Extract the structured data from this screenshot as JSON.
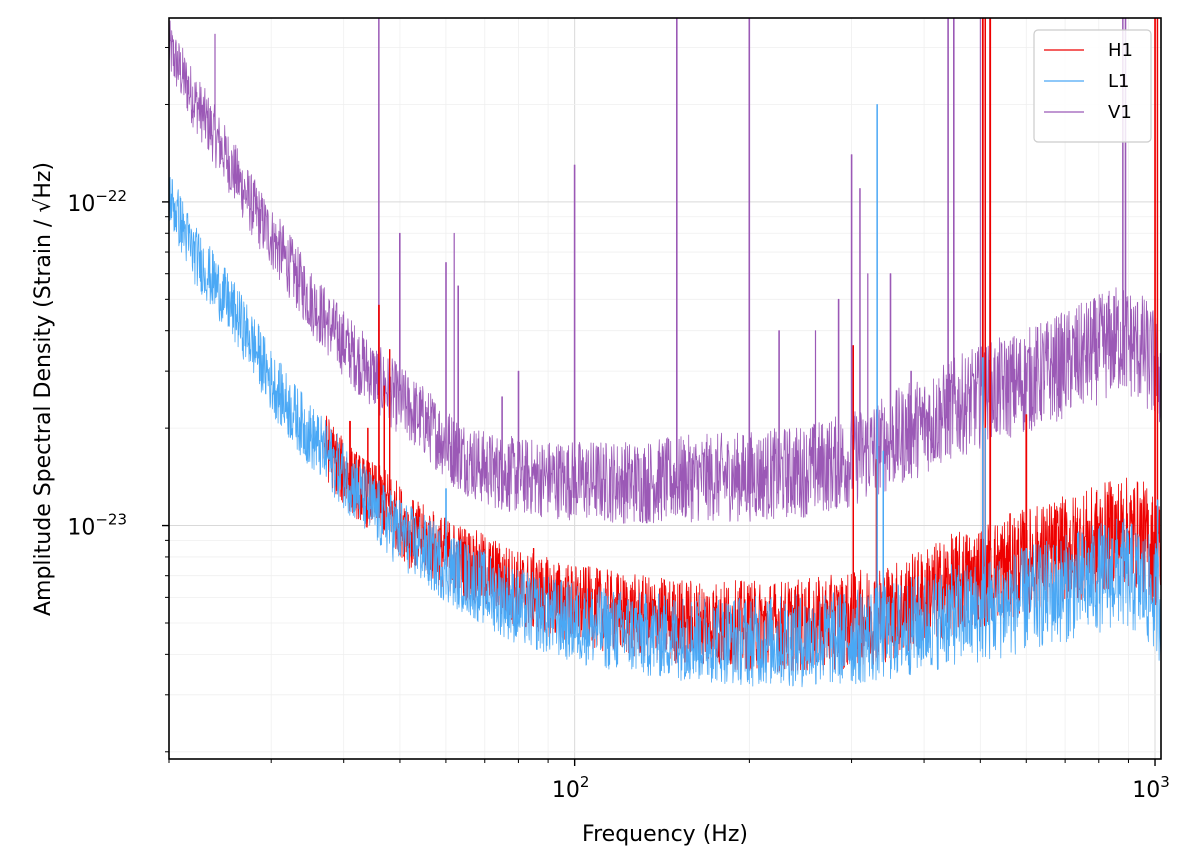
{
  "chart_data": {
    "type": "line",
    "xlabel": "Frequency (Hz)",
    "ylabel": "Amplitude Spectral Density (Strain / √Hz)",
    "x_scale": "log",
    "y_scale": "log",
    "xlim": [
      20,
      1024
    ],
    "ylim": [
      1.9e-24,
      3.7e-22
    ],
    "grid": true,
    "legend_position": "top-right",
    "x_ticks": [
      {
        "value": 100,
        "base": "10",
        "exp": "2"
      },
      {
        "value": 1000,
        "base": "10",
        "exp": "3"
      }
    ],
    "y_ticks": [
      {
        "value": 1e-23,
        "base": "10",
        "exp": "−23"
      },
      {
        "value": 1e-22,
        "base": "10",
        "exp": "−22"
      }
    ],
    "series": [
      {
        "name": "H1",
        "color": "#ee0000",
        "baseline": [
          [
            37,
            1.8e-23
          ],
          [
            40,
            1.45e-23
          ],
          [
            44,
            1.25e-23
          ],
          [
            48,
            1.15e-23
          ],
          [
            52,
            9.5e-24
          ],
          [
            60,
            8.2e-24
          ],
          [
            70,
            7.2e-24
          ],
          [
            80,
            6.4e-24
          ],
          [
            100,
            5.7e-24
          ],
          [
            130,
            5.2e-24
          ],
          [
            160,
            5e-24
          ],
          [
            200,
            4.9e-24
          ],
          [
            250,
            4.9e-24
          ],
          [
            300,
            5.1e-24
          ],
          [
            350,
            5.4e-24
          ],
          [
            400,
            6e-24
          ],
          [
            450,
            6.6e-24
          ],
          [
            500,
            7e-24
          ],
          [
            600,
            7.8e-24
          ],
          [
            700,
            8.4e-24
          ],
          [
            800,
            9e-24
          ],
          [
            870,
            9.6e-24
          ],
          [
            950,
            9.3e-24
          ],
          [
            1000,
            8.4e-24
          ],
          [
            1024,
            8e-24
          ]
        ],
        "lines": [
          [
            41,
            2.1e-23
          ],
          [
            44,
            2e-23
          ],
          [
            46,
            4.8e-23
          ],
          [
            47,
            2.7e-23
          ],
          [
            48,
            3.5e-23
          ],
          [
            53,
            1.05e-23
          ],
          [
            60,
            9.5e-24
          ],
          [
            85,
            8.5e-24
          ],
          [
            302,
            3.6e-23
          ],
          [
            331,
            1.6e-23
          ],
          [
            505,
            4e-22
          ],
          [
            510,
            4e-22
          ],
          [
            520,
            4e-22
          ],
          [
            600,
            2.2e-23
          ],
          [
            1000,
            4e-22
          ],
          [
            1010,
            4e-22
          ]
        ]
      },
      {
        "name": "L1",
        "color": "#4aa8f5",
        "baseline": [
          [
            20,
            1.05e-22
          ],
          [
            22,
            7e-23
          ],
          [
            24,
            5.6e-23
          ],
          [
            26,
            4.5e-23
          ],
          [
            28,
            3.6e-23
          ],
          [
            30,
            2.8e-23
          ],
          [
            32,
            2.35e-23
          ],
          [
            35,
            1.9e-23
          ],
          [
            38,
            1.6e-23
          ],
          [
            42,
            1.3e-23
          ],
          [
            46,
            1.08e-23
          ],
          [
            52,
            9e-24
          ],
          [
            60,
            7.5e-24
          ],
          [
            70,
            6.4e-24
          ],
          [
            80,
            5.6e-24
          ],
          [
            100,
            5e-24
          ],
          [
            130,
            4.6e-24
          ],
          [
            160,
            4.5e-24
          ],
          [
            200,
            4.4e-24
          ],
          [
            250,
            4.4e-24
          ],
          [
            300,
            4.5e-24
          ],
          [
            350,
            4.7e-24
          ],
          [
            400,
            5e-24
          ],
          [
            450,
            5.3e-24
          ],
          [
            500,
            5.4e-24
          ],
          [
            600,
            5.9e-24
          ],
          [
            700,
            6.4e-24
          ],
          [
            800,
            6.9e-24
          ],
          [
            870,
            7.2e-24
          ],
          [
            950,
            6.6e-24
          ],
          [
            1000,
            6e-24
          ],
          [
            1024,
            5.6e-24
          ]
        ],
        "lines": [
          [
            42,
            1.5e-23
          ],
          [
            60,
            1.3e-23
          ],
          [
            332,
            2e-22
          ],
          [
            340,
            1.7e-23
          ],
          [
            505,
            3.3e-23
          ],
          [
            510,
            2e-23
          ],
          [
            600,
            8.5e-24
          ],
          [
            1010,
            1.2e-23
          ]
        ]
      },
      {
        "name": "V1",
        "color": "#9b59b6",
        "baseline": [
          [
            20,
            3e-22
          ],
          [
            22,
            2.1e-22
          ],
          [
            24,
            1.6e-22
          ],
          [
            26,
            1.22e-22
          ],
          [
            28,
            9.5e-23
          ],
          [
            30,
            7.8e-23
          ],
          [
            32,
            6.5e-23
          ],
          [
            35,
            5e-23
          ],
          [
            38,
            4.1e-23
          ],
          [
            42,
            3.3e-23
          ],
          [
            48,
            2.6e-23
          ],
          [
            55,
            2.1e-23
          ],
          [
            62,
            1.7e-23
          ],
          [
            70,
            1.5e-23
          ],
          [
            80,
            1.42e-23
          ],
          [
            100,
            1.38e-23
          ],
          [
            130,
            1.36e-23
          ],
          [
            160,
            1.4e-23
          ],
          [
            200,
            1.42e-23
          ],
          [
            250,
            1.48e-23
          ],
          [
            300,
            1.6e-23
          ],
          [
            350,
            1.82e-23
          ],
          [
            400,
            2.05e-23
          ],
          [
            450,
            2.3e-23
          ],
          [
            500,
            2.5e-23
          ],
          [
            600,
            2.8e-23
          ],
          [
            700,
            3.15e-23
          ],
          [
            800,
            3.5e-23
          ],
          [
            870,
            3.8e-23
          ],
          [
            950,
            3.5e-23
          ],
          [
            1000,
            3.1e-23
          ],
          [
            1024,
            2.9e-23
          ]
        ],
        "lines": [
          [
            24,
            3.3e-22
          ],
          [
            46,
            3.7e-22
          ],
          [
            50,
            8e-23
          ],
          [
            60,
            6.5e-23
          ],
          [
            62,
            8e-23
          ],
          [
            63,
            5.5e-23
          ],
          [
            75,
            2.5e-23
          ],
          [
            80,
            3e-23
          ],
          [
            100,
            1.3e-22
          ],
          [
            150,
            3.7e-22
          ],
          [
            200,
            3.7e-22
          ],
          [
            225,
            4e-23
          ],
          [
            260,
            4e-23
          ],
          [
            285,
            5e-23
          ],
          [
            300,
            1.4e-22
          ],
          [
            310,
            1.1e-22
          ],
          [
            320,
            6e-23
          ],
          [
            350,
            6e-23
          ],
          [
            380,
            3e-23
          ],
          [
            440,
            3.7e-22
          ],
          [
            450,
            3.7e-22
          ],
          [
            500,
            3.7e-22
          ],
          [
            520,
            3.7e-22
          ],
          [
            880,
            3.7e-22
          ],
          [
            890,
            3.7e-22
          ],
          [
            1000,
            3e-23
          ]
        ]
      }
    ]
  }
}
